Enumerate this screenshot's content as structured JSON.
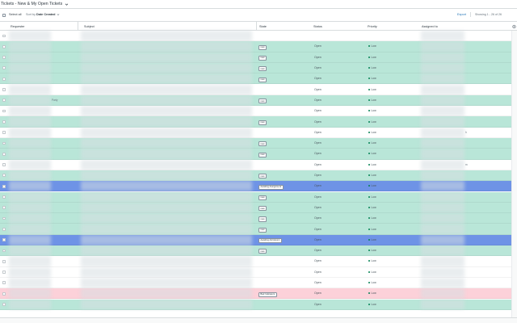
{
  "title": "Tickets - New & My Open Tickets",
  "toolbar": {
    "select_all": "Select all",
    "sort_prefix": "Sort by",
    "sort_value": "Date Created",
    "export": "Export",
    "showing": "Showing 1 - 26 of 26"
  },
  "columns": {
    "requester": "Requester",
    "subject": "Subject",
    "state": "State",
    "status": "Status",
    "priority": "Priority",
    "assigned": "Assigned to"
  },
  "colors": {
    "green": "#b9e6d8",
    "white": "#ffffff",
    "blue": "#6e93e6",
    "pink": "#fcd1d9"
  },
  "rows": [
    {
      "color": "white",
      "state": "",
      "status": "",
      "priority": "",
      "req_extra": "",
      "asg_extra": ""
    },
    {
      "color": "green",
      "state": "new",
      "status": "Open",
      "priority": "Low",
      "req_extra": "",
      "asg_extra": ""
    },
    {
      "color": "green",
      "state": "new",
      "status": "Open",
      "priority": "Low",
      "req_extra": "",
      "asg_extra": ""
    },
    {
      "color": "green",
      "state": "new",
      "status": "Open",
      "priority": "Low",
      "req_extra": "",
      "asg_extra": ""
    },
    {
      "color": "green",
      "state": "new",
      "status": "Open",
      "priority": "Low",
      "req_extra": "",
      "asg_extra": ""
    },
    {
      "color": "white",
      "state": "",
      "status": "Open",
      "priority": "Low",
      "req_extra": "",
      "asg_extra": ""
    },
    {
      "color": "green",
      "state": "new",
      "status": "Open",
      "priority": "Low",
      "req_extra": "Party",
      "asg_extra": ""
    },
    {
      "color": "white",
      "state": "",
      "status": "Open",
      "priority": "Low",
      "req_extra": "",
      "asg_extra": ""
    },
    {
      "color": "green",
      "state": "new",
      "status": "Open",
      "priority": "Low",
      "req_extra": "",
      "asg_extra": ""
    },
    {
      "color": "white",
      "state": "",
      "status": "Open",
      "priority": "Low",
      "req_extra": "",
      "asg_extra": "h"
    },
    {
      "color": "green",
      "state": "new",
      "status": "Open",
      "priority": "Low",
      "req_extra": "",
      "asg_extra": ""
    },
    {
      "color": "green",
      "state": "new",
      "status": "Open",
      "priority": "Low",
      "req_extra": "",
      "asg_extra": ""
    },
    {
      "color": "white",
      "state": "",
      "status": "Open",
      "priority": "Low",
      "req_extra": "",
      "asg_extra": "m"
    },
    {
      "color": "green",
      "state": "new",
      "status": "Open",
      "priority": "Low",
      "req_extra": "",
      "asg_extra": ""
    },
    {
      "color": "blue",
      "state": "Awaiting Assignment",
      "status": "Open",
      "priority": "Low",
      "req_extra": "",
      "asg_extra": ""
    },
    {
      "color": "green",
      "state": "new",
      "status": "Open",
      "priority": "Low",
      "req_extra": "",
      "asg_extra": ""
    },
    {
      "color": "green",
      "state": "new",
      "status": "Open",
      "priority": "Low",
      "req_extra": "",
      "asg_extra": ""
    },
    {
      "color": "green",
      "state": "new",
      "status": "Open",
      "priority": "Low",
      "req_extra": "",
      "asg_extra": ""
    },
    {
      "color": "green",
      "state": "new",
      "status": "Open",
      "priority": "Low",
      "req_extra": "",
      "asg_extra": ""
    },
    {
      "color": "blue",
      "state": "Awaiting Admission",
      "status": "Open",
      "priority": "Low",
      "req_extra": "",
      "asg_extra": ""
    },
    {
      "color": "green",
      "state": "new",
      "status": "Open",
      "priority": "Low",
      "req_extra": "",
      "asg_extra": ""
    },
    {
      "color": "white",
      "state": "",
      "status": "Open",
      "priority": "Low",
      "req_extra": "",
      "asg_extra": ""
    },
    {
      "color": "white",
      "state": "",
      "status": "Open",
      "priority": "Low",
      "req_extra": "",
      "asg_extra": ""
    },
    {
      "color": "white",
      "state": "",
      "status": "Open",
      "priority": "Low",
      "req_extra": "",
      "asg_extra": ""
    },
    {
      "color": "pink",
      "state": "Bad Indicators",
      "status": "Open",
      "priority": "Low",
      "req_extra": "",
      "asg_extra": ""
    },
    {
      "color": "green",
      "state": "",
      "status": "Open",
      "priority": "Low",
      "req_extra": "",
      "asg_extra": ""
    }
  ]
}
